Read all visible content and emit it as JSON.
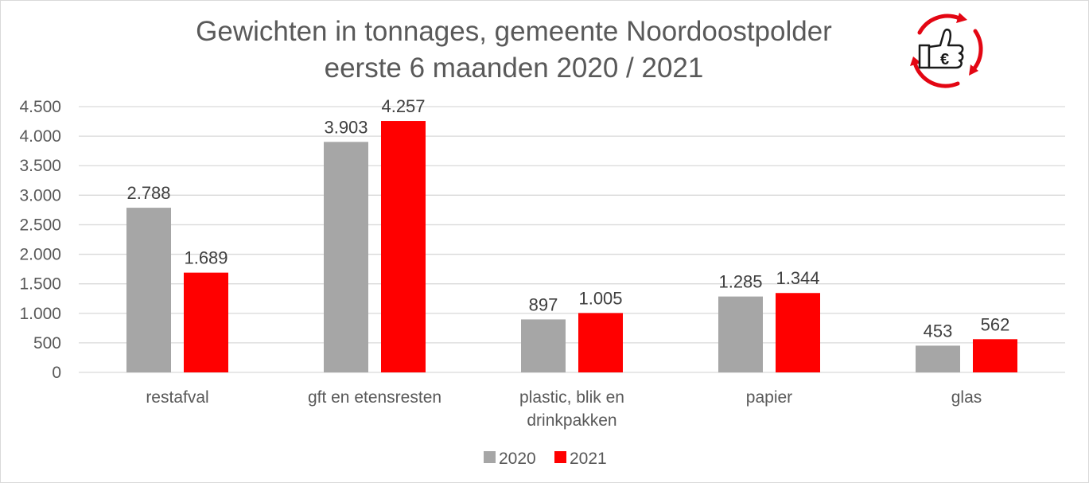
{
  "chart_data": {
    "type": "bar",
    "title": [
      "Gewichten in tonnages, gemeente Noordoostpolder",
      "eerste 6 maanden 2020 / 2021"
    ],
    "categories": [
      [
        "restafval"
      ],
      [
        "gft en etensresten"
      ],
      [
        "plastic, blik en",
        "drinkpakken"
      ],
      [
        "papier"
      ],
      [
        "glas"
      ]
    ],
    "series": [
      {
        "name": "2020",
        "color": "#a6a6a6",
        "values": [
          2788,
          3903,
          897,
          1285,
          453
        ],
        "labels": [
          "2.788",
          "3.903",
          "897",
          "1.285",
          "453"
        ]
      },
      {
        "name": "2021",
        "color": "#ff0000",
        "values": [
          1689,
          4257,
          1005,
          1344,
          562
        ],
        "labels": [
          "1.689",
          "4.257",
          "1.005",
          "1.344",
          "562"
        ]
      }
    ],
    "ylim": [
      0,
      4500
    ],
    "yticks": [
      0,
      500,
      1000,
      1500,
      2000,
      2500,
      3000,
      3500,
      4000,
      4500
    ],
    "ytick_labels": [
      "0",
      "500",
      "1.000",
      "1.500",
      "2.000",
      "2.500",
      "3.000",
      "3.500",
      "4.000",
      "4.500"
    ],
    "grid": true,
    "legend_position": "bottom"
  },
  "logo": {
    "icon": "recycle-thumbs-up-euro-icon",
    "color": "#e30613",
    "glyph": "€"
  }
}
